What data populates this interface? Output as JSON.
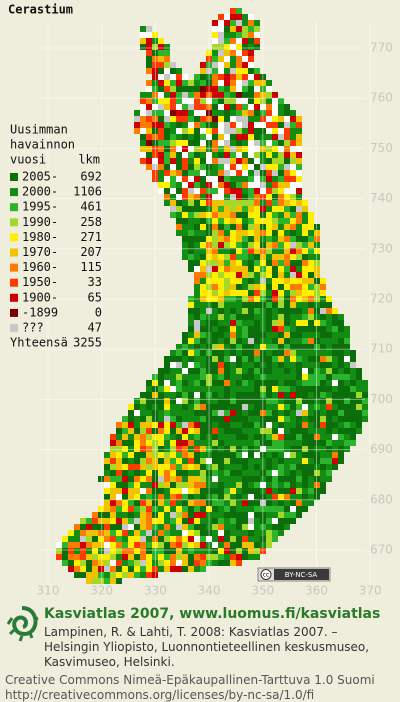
{
  "title": "Cerastium",
  "legend": {
    "heading": [
      "Uusimman",
      "havainnon",
      "vuosi"
    ],
    "count_header": "lkm",
    "rows": [
      {
        "label": "2005-",
        "count": 692,
        "color": "#0b6e0b"
      },
      {
        "label": "2000-",
        "count": 1106,
        "color": "#138c13"
      },
      {
        "label": "1995-",
        "count": 461,
        "color": "#2cb52c"
      },
      {
        "label": "1990-",
        "count": 258,
        "color": "#a6d82a"
      },
      {
        "label": "1980-",
        "count": 271,
        "color": "#ffee00"
      },
      {
        "label": "1970-",
        "count": 207,
        "color": "#f2c200"
      },
      {
        "label": "1960-",
        "count": 115,
        "color": "#ff7a00"
      },
      {
        "label": "1950-",
        "count": 33,
        "color": "#ff3a00"
      },
      {
        "label": "1900-",
        "count": 65,
        "color": "#cc0000"
      },
      {
        "label": "-1899",
        "count": 0,
        "color": "#7a0000"
      },
      {
        "label": "???",
        "count": 47,
        "color": "#c8c8c8"
      }
    ],
    "total_label": "Yhteensä",
    "total": 3255
  },
  "grid": {
    "northing": [
      "770",
      "760",
      "750",
      "740",
      "730",
      "720",
      "710",
      "700",
      "690",
      "680",
      "670"
    ],
    "easting": [
      "310",
      "320",
      "330",
      "340",
      "350",
      "360",
      "370"
    ]
  },
  "license_badge": "BY-NC-SA",
  "footer": {
    "site": "Kasviatlas 2007, www.luomus.fi/kasviatlas",
    "citation": [
      "Lampinen, R. & Lahti, T. 2008: Kasviatlas 2007. –",
      "Helsingin Yliopisto, Luonnontieteellinen keskusmuseo,",
      "Kasvimuseo, Helsinki."
    ],
    "license": [
      "Creative Commons Nimeä-Epäkaupallinen-Tarttuva 1.0 Suomi",
      "http://creativecommons.org/licenses/by-nc-sa/1.0/fi"
    ]
  }
}
